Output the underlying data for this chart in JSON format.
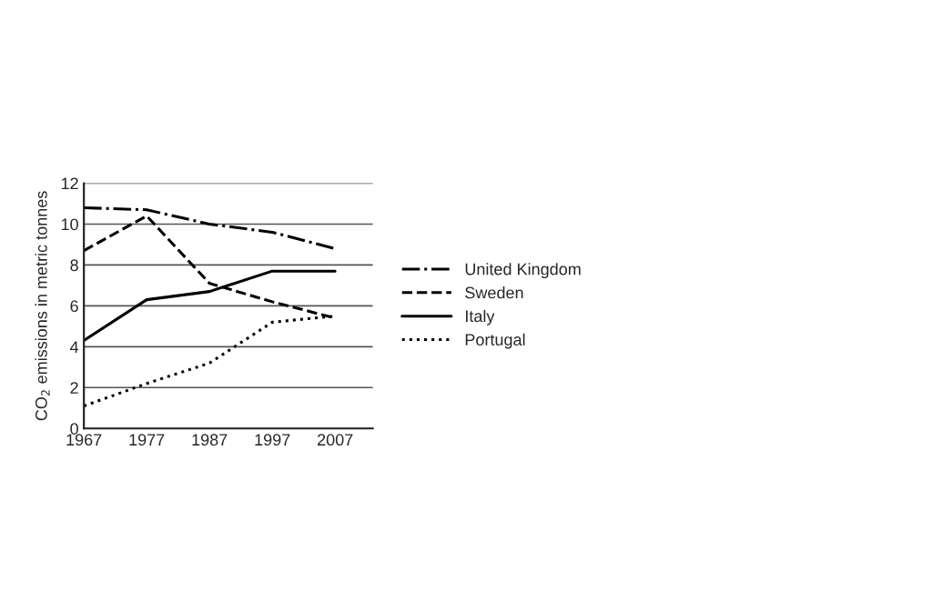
{
  "chart_data": {
    "type": "line",
    "ylabel": "CO$_{2}$ emissions in metric tonnes",
    "x": [
      1967,
      1977,
      1987,
      1997,
      2007
    ],
    "series": [
      {
        "name": "United Kingdom",
        "color": "#000000",
        "line_style": "dashdot",
        "values": [
          10.8,
          10.7,
          10.0,
          9.6,
          8.8
        ]
      },
      {
        "name": "Sweden",
        "color": "#000000",
        "line_style": "dashed",
        "values": [
          8.7,
          10.4,
          7.1,
          6.2,
          5.4
        ]
      },
      {
        "name": "Italy",
        "color": "#000000",
        "line_style": "solid",
        "values": [
          4.3,
          6.3,
          6.7,
          7.7,
          7.7
        ]
      },
      {
        "name": "Portugal",
        "color": "#000000",
        "line_style": "dotted",
        "values": [
          1.1,
          2.2,
          3.2,
          5.2,
          5.5
        ]
      }
    ],
    "xlim": [
      1967,
      2013
    ],
    "xticks": [
      1967,
      1977,
      1987,
      1997,
      2007
    ],
    "ylim": [
      0,
      12
    ],
    "yticks": [
      0,
      2,
      4,
      6,
      8,
      10,
      12
    ],
    "grid": "y",
    "legend": "right"
  }
}
